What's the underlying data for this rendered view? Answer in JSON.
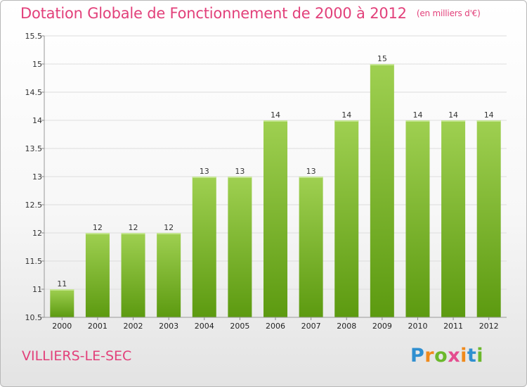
{
  "title": "Dotation Globale de Fonctionnement de 2000 à 2012",
  "unit": "(en milliers d'€)",
  "commune": "VILLIERS-LE-SEC",
  "logo": {
    "p": "P",
    "r": "r",
    "o": "o",
    "x": "x",
    "i": "i",
    "t": "t",
    "i2": "i"
  },
  "colors": {
    "title": "#e2407a",
    "bar_top": "#9fd051",
    "bar_bottom": "#5c9a10"
  },
  "chart_data": {
    "type": "bar",
    "title": "Dotation Globale de Fonctionnement de 2000 à 2012",
    "xlabel": "",
    "ylabel": "(en milliers d'€)",
    "categories": [
      "2000",
      "2001",
      "2002",
      "2003",
      "2004",
      "2005",
      "2006",
      "2007",
      "2008",
      "2009",
      "2010",
      "2011",
      "2012"
    ],
    "values": [
      11,
      12,
      12,
      12,
      13,
      13,
      14,
      13,
      14,
      15,
      14,
      14,
      14
    ],
    "data_labels": [
      "11",
      "12",
      "12",
      "12",
      "13",
      "13",
      "14",
      "13",
      "14",
      "15",
      "14",
      "14",
      "14"
    ],
    "bar_values": [
      11,
      12,
      12,
      12,
      13,
      13,
      14,
      13,
      14,
      15,
      14,
      14,
      14
    ],
    "ylim": [
      10.5,
      15.5
    ],
    "yticks": [
      10.5,
      11,
      11.5,
      12,
      12.5,
      13,
      13.5,
      14,
      14.5,
      15,
      15.5
    ],
    "ytick_labels": [
      "10.5",
      "11",
      "11.5",
      "12",
      "12.5",
      "13",
      "13.5",
      "14",
      "14.5",
      "15",
      "15.5"
    ],
    "grid": true
  }
}
